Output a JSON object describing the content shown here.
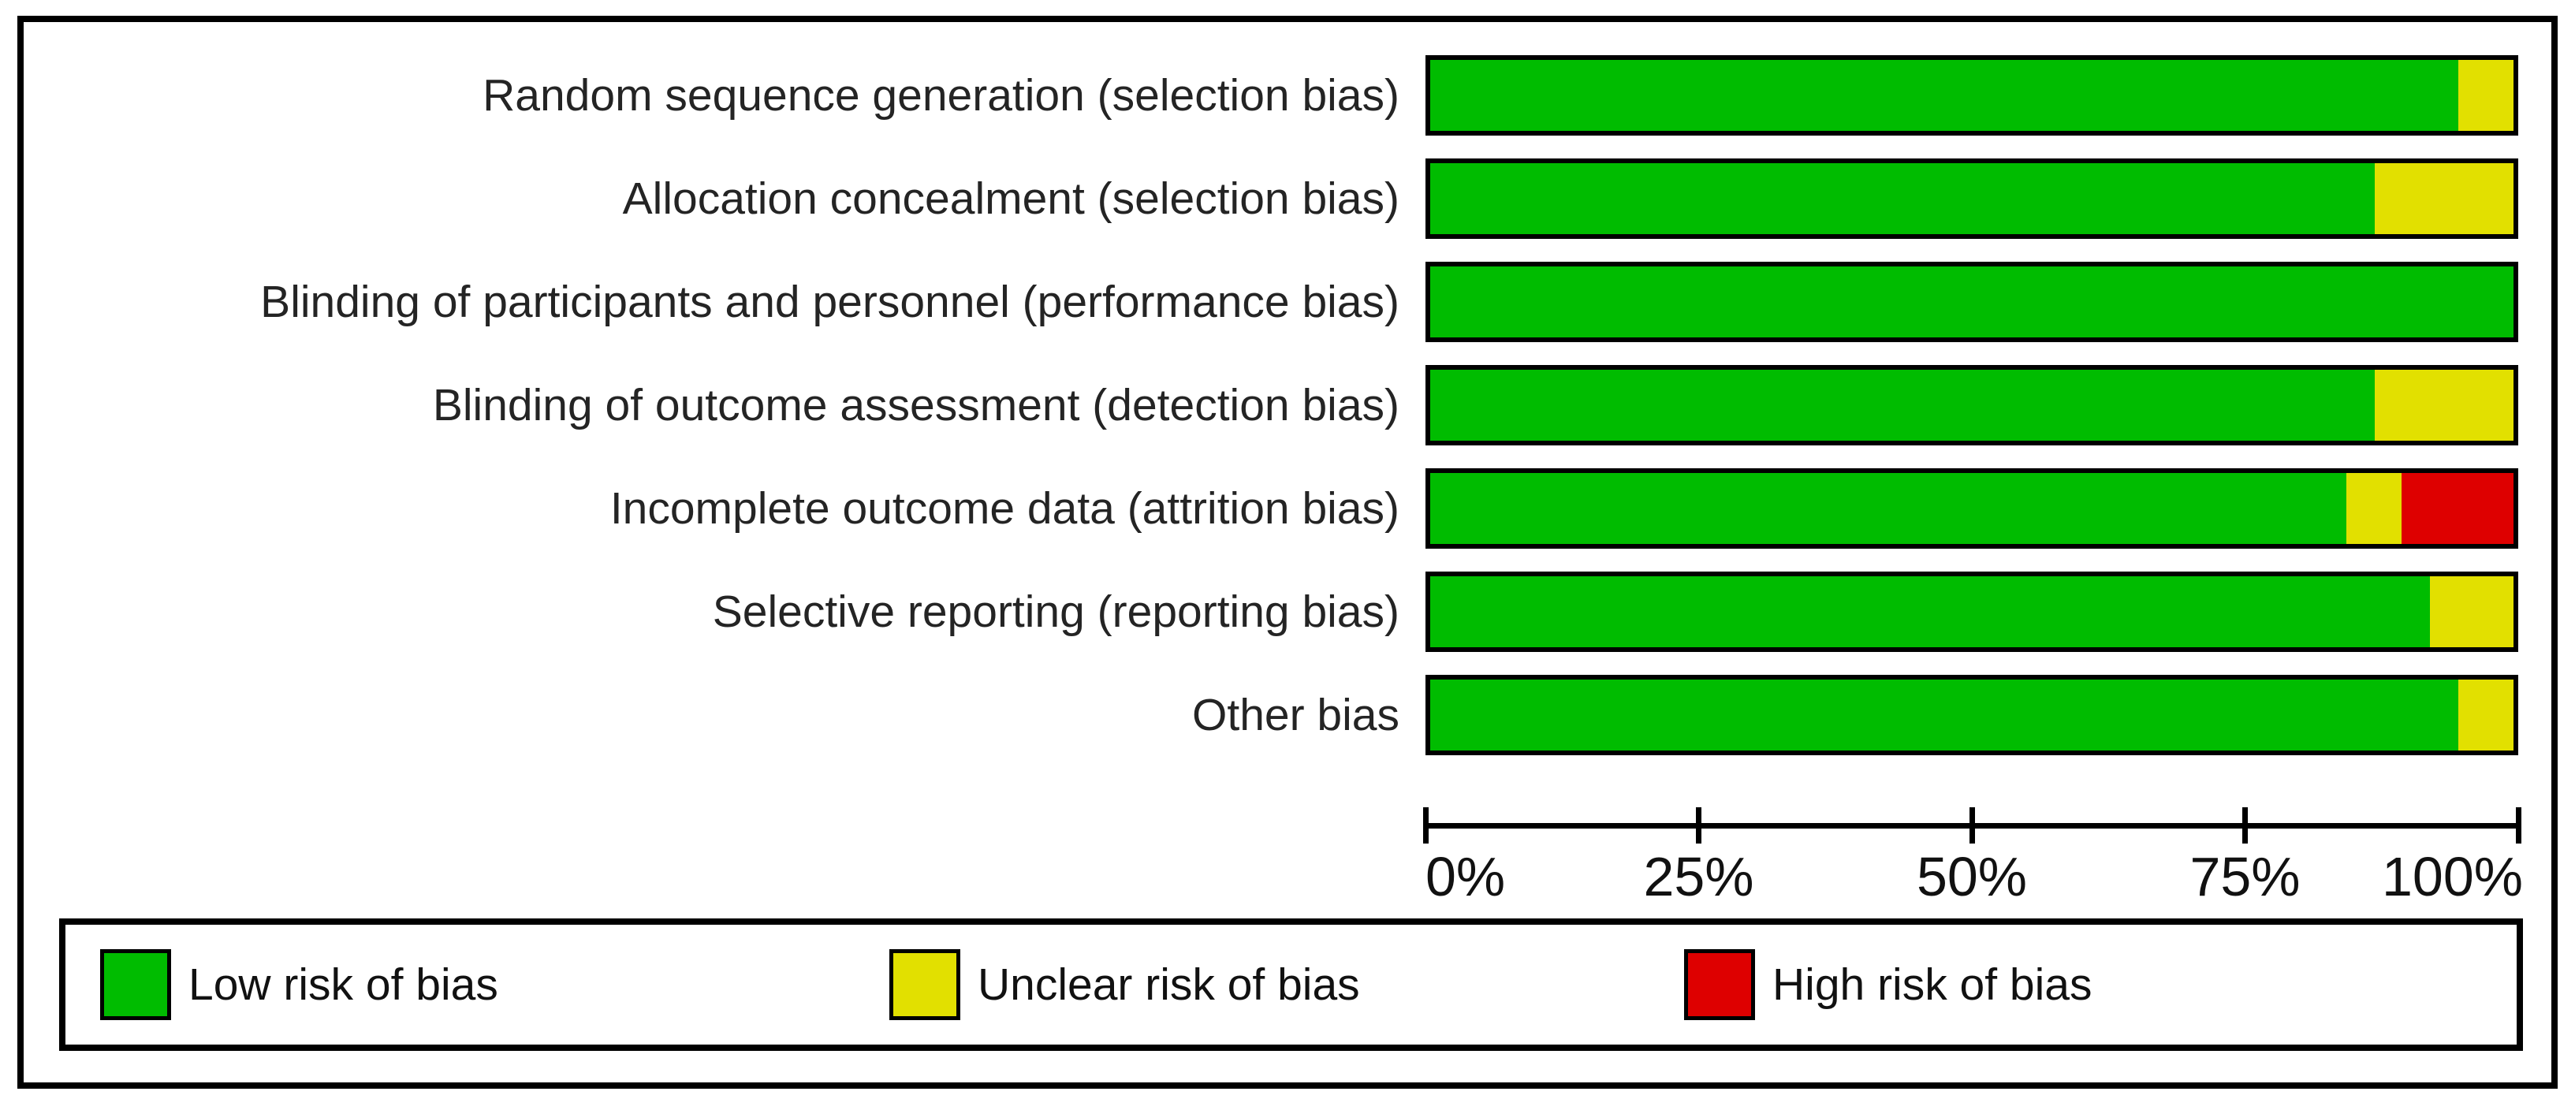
{
  "figure": {
    "kind": "risk-of-bias-graph",
    "background": "#ffffff",
    "border_color": "#000000"
  },
  "chart_data": {
    "type": "bar",
    "orientation": "horizontal",
    "stacked": true,
    "grid": false,
    "title": "",
    "xlabel": "",
    "ylabel": "",
    "xlim": [
      0,
      100
    ],
    "x_ticks": [
      "0%",
      "25%",
      "50%",
      "75%",
      "100%"
    ],
    "legend_position": "bottom",
    "categories": [
      "Random sequence generation (selection bias)",
      "Allocation concealment (selection bias)",
      "Blinding of participants and personnel (performance bias)",
      "Blinding of outcome assessment (detection bias)",
      "Incomplete outcome data (attrition bias)",
      "Selective reporting (reporting bias)",
      "Other bias"
    ],
    "series": [
      {
        "name": "Low risk of bias",
        "color": "#00BC00",
        "values": [
          94.9,
          87.2,
          100,
          87.2,
          84.6,
          92.3,
          94.9
        ]
      },
      {
        "name": "Unclear risk of bias",
        "color": "#E2E000",
        "values": [
          5.1,
          12.8,
          0,
          12.8,
          5.1,
          7.7,
          5.1
        ]
      },
      {
        "name": "High risk of bias",
        "color": "#DE0000",
        "values": [
          0,
          0,
          0,
          0,
          10.3,
          0,
          0
        ]
      }
    ]
  },
  "legend": {
    "items": [
      {
        "label": "Low risk of bias",
        "color": "#00BC00"
      },
      {
        "label": "Unclear risk of bias",
        "color": "#E2E000"
      },
      {
        "label": "High risk of bias",
        "color": "#DE0000"
      }
    ]
  }
}
